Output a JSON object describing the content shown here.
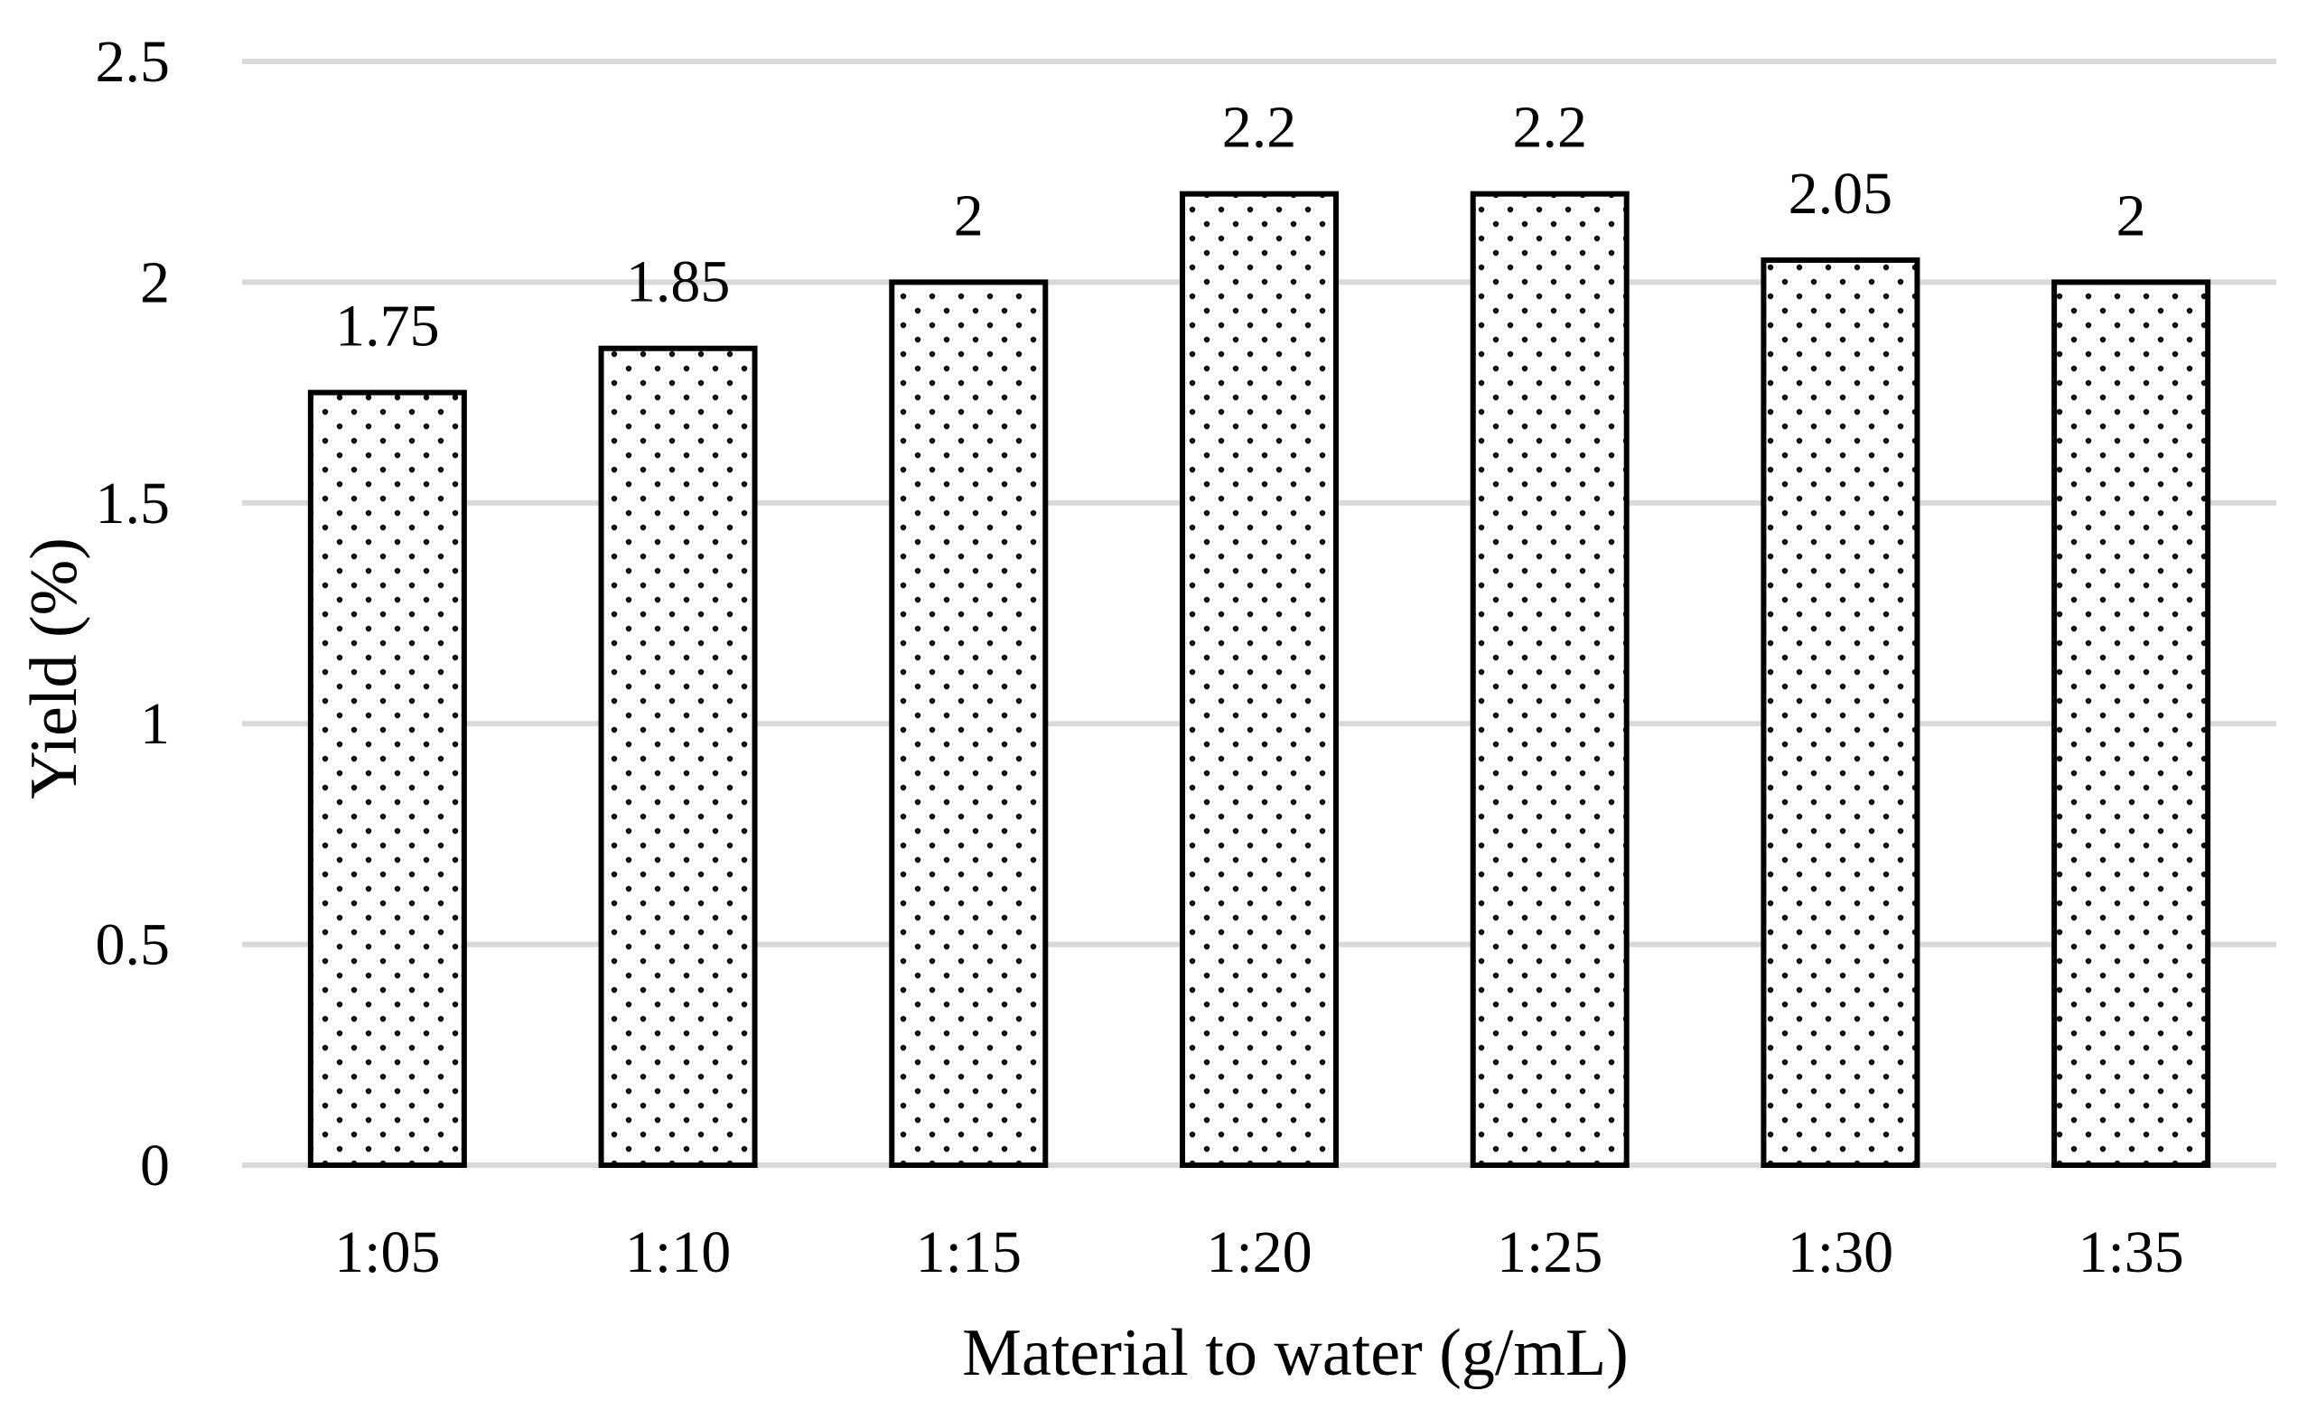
{
  "chart_data": {
    "type": "bar",
    "title": "",
    "categories": [
      "1:05",
      "1:10",
      "1:15",
      "1:20",
      "1:25",
      "1:30",
      "1:35"
    ],
    "values": [
      1.75,
      1.85,
      2,
      2.2,
      2.2,
      2.05,
      2
    ],
    "data_labels": [
      "1.75",
      "1.85",
      "2",
      "2.2",
      "2.2",
      "2.05",
      "2"
    ],
    "xlabel": "Material to water (g/mL)",
    "ylabel": "Yield (%)",
    "ylim": [
      0,
      2.5
    ],
    "yticks": [
      "0",
      "0.5",
      "1",
      "1.5",
      "2",
      "2.5"
    ],
    "grid": true,
    "bar_fill": "dotted pattern",
    "colors": {
      "bar_stroke": "#000000",
      "bar_fill": "#ffffff",
      "dot": "#000000",
      "grid": "#d9d9d9"
    }
  }
}
